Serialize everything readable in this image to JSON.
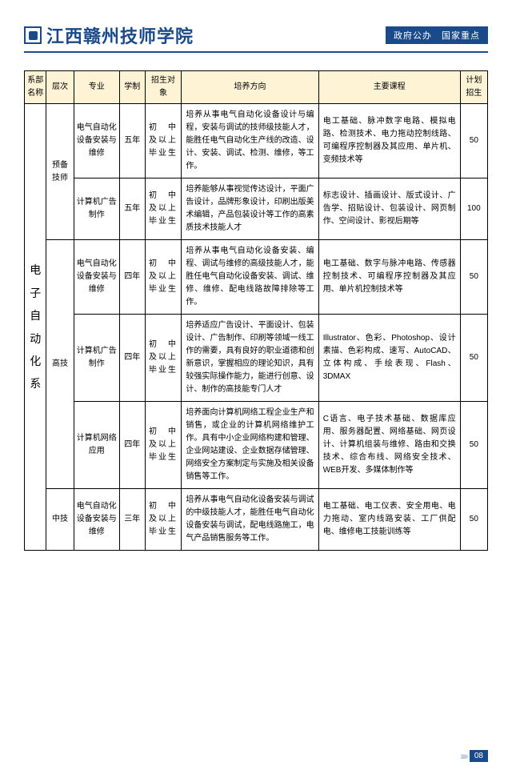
{
  "header": {
    "school_name": "江西赣州技师学院",
    "right_label": "政府公办　国家重点"
  },
  "table": {
    "headers": [
      "系部名称",
      "层次",
      "专业",
      "学制",
      "招生对象",
      "培养方向",
      "主要课程",
      "计划招生"
    ],
    "dept": "电子自动化系",
    "rows": [
      {
        "level": "预备技师",
        "major": "电气自动化设备安装与维修",
        "yrs": "五年",
        "target": "初　中及以上毕业生",
        "direction": "培养从事电气自动化设备设计与编程，安装与调试的技师级技能人才，能胜任电气自动化生产线的改造、设计、安装、调试、检测、维修，等工作。",
        "course": "电工基础、脉冲数字电路、模拟电路、检测技术、电力拖动控制线路、可编程序控制器及其应用、单片机、变频技术等",
        "plan": "50"
      },
      {
        "level": "",
        "major": "计算机广告制作",
        "yrs": "五年",
        "target": "初　中及以上毕业生",
        "direction": "培养能够从事视觉传达设计，平面广告设计，品牌形象设计，印刷出版美术编辑，产品包装设计等工作的高素质技术技能人才",
        "course": "标志设计、插画设计、版式设计、广告学、招贴设计、包装设计、网页制作、空间设计、影视后期等",
        "plan": "100"
      },
      {
        "level": "高技",
        "major": "电气自动化设备安装与维修",
        "yrs": "四年",
        "target": "初　中及以上毕业生",
        "direction": "培养从事电气自动化设备安装、编程、调试与维修的高级技能人才，能胜任电气自动化设备安装、调试、维修、维修、配电线路故障排除等工作。",
        "course": "电工基础、数字与脉冲电路、传感器控制技术、可编程序控制器及其应用、单片机控制技术等",
        "plan": "50"
      },
      {
        "level": "",
        "major": "计算机广告制作",
        "yrs": "四年",
        "target": "初　中及以上毕业生",
        "direction": "培养适应广告设计、平面设计、包装设计、广告制作、印刷等领域一线工作的需要，具有良好的职业道德和创新意识，掌握相应的理论知识，具有较强实际操作能力，能进行创意、设计、制作的高技能专门人才",
        "course": "Illustrator、色彩、Photoshop、设计素描、色彩构成、速写、AutoCAD、立体构成、手绘表现、Flash、3DMAX",
        "plan": "50"
      },
      {
        "level": "",
        "major": "计算机网络应用",
        "yrs": "四年",
        "target": "初　中及以上毕业生",
        "direction": "培养面向计算机网络工程企业生产和销售，或企业的计算机网络维护工作。具有中小企业网络构建和管理、企业网站建设、企业数据存储管理、网络安全方案制定与实施及相关设备销售等工作。",
        "course": "C语言、电子技术基础、数据库应用、服务器配置、网络基础、网页设计、计算机组装与维修、路由和交换技术、综合布线、网络安全技术、WEB开发、多媒体制作等",
        "plan": "50"
      },
      {
        "level": "中技",
        "major": "电气自动化设备安装与维修",
        "yrs": "三年",
        "target": "初　中及以上毕业生",
        "direction": "培养从事电气自动化设备安装与调试的中级技能人才，能胜任电气自动化设备安装与调试，配电线路施工，电气产品销售服务等工作。",
        "course": "电工基础、电工仪表、安全用电、电力拖动、室内线路安装、工厂供配电、维修电工技能训练等",
        "plan": "50"
      }
    ]
  },
  "footer": {
    "page": "08"
  }
}
